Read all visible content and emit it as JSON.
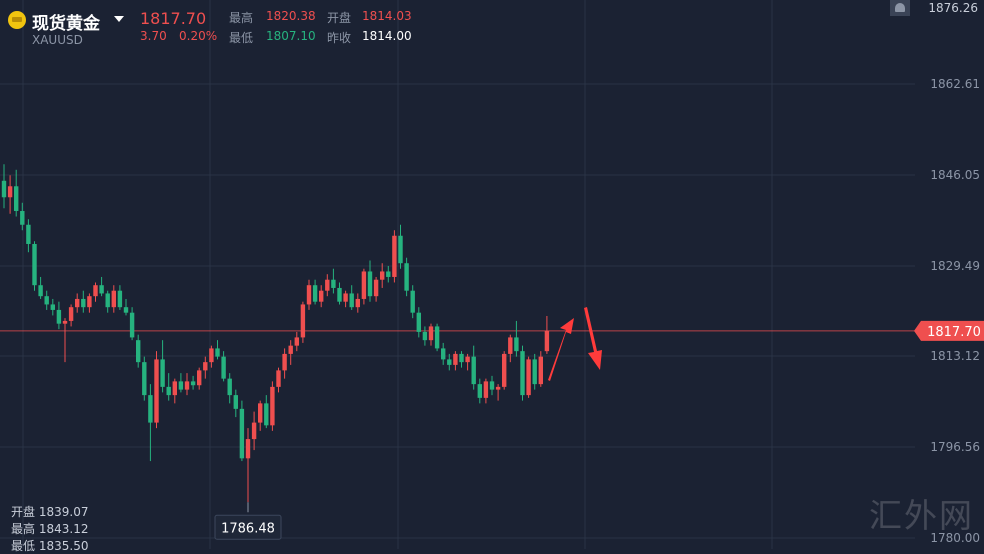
{
  "header": {
    "name": "现货黄金",
    "symbol": "XAUUSD",
    "price": "1817.70",
    "change": "3.70",
    "change_pct": "0.20%",
    "high_label": "最高",
    "high": "1820.38",
    "low_label": "最低",
    "low": "1807.10",
    "open_label": "开盘",
    "open": "1814.03",
    "prev_close_label": "昨收",
    "prev_close": "1814.00"
  },
  "ohlc_panel": {
    "open_label": "开盘",
    "open": "1839.07",
    "high_label": "最高",
    "high": "1843.12",
    "low_label": "最低",
    "low": "1835.50"
  },
  "watermark": "汇外网",
  "colors": {
    "up": "#ef4f4f",
    "down": "#26b37f",
    "bg": "#1b2233",
    "grid": "#2a3346"
  },
  "chart_data": {
    "type": "candlestick",
    "y_ticks": [
      "1862.61",
      "1846.05",
      "1829.49",
      "1813.12",
      "1796.56",
      "1780.00"
    ],
    "top_tick": "1876.26",
    "ylim": [
      1780.0,
      1876.26
    ],
    "current_price": "1817.70",
    "min_marker": "1786.48",
    "annotations": [
      "red-arrow-up",
      "red-arrow-down"
    ],
    "candles": [
      [
        1845.0,
        1848.0,
        1840.0,
        1842.0
      ],
      [
        1842.0,
        1846.0,
        1839.0,
        1844.0
      ],
      [
        1844.0,
        1847.0,
        1838.5,
        1839.5
      ],
      [
        1839.5,
        1841.0,
        1836.0,
        1837.0
      ],
      [
        1837.0,
        1838.0,
        1832.0,
        1833.5
      ],
      [
        1833.5,
        1834.0,
        1825.0,
        1826.0
      ],
      [
        1826.0,
        1827.5,
        1823.5,
        1824.0
      ],
      [
        1824.0,
        1825.0,
        1821.5,
        1822.5
      ],
      [
        1822.5,
        1823.5,
        1820.5,
        1821.5
      ],
      [
        1821.5,
        1823.0,
        1818.0,
        1819.0
      ],
      [
        1819.0,
        1820.0,
        1812.0,
        1819.5
      ],
      [
        1819.5,
        1822.5,
        1818.5,
        1822.0
      ],
      [
        1822.0,
        1824.5,
        1821.0,
        1823.5
      ],
      [
        1823.5,
        1825.0,
        1821.0,
        1822.0
      ],
      [
        1822.0,
        1824.5,
        1821.0,
        1824.0
      ],
      [
        1824.0,
        1826.5,
        1823.0,
        1826.0
      ],
      [
        1826.0,
        1827.5,
        1824.0,
        1824.5
      ],
      [
        1824.5,
        1825.0,
        1821.0,
        1822.0
      ],
      [
        1822.0,
        1826.0,
        1821.0,
        1825.0
      ],
      [
        1825.0,
        1826.0,
        1821.5,
        1822.0
      ],
      [
        1822.0,
        1823.5,
        1820.5,
        1821.0
      ],
      [
        1821.0,
        1822.0,
        1816.0,
        1816.5
      ],
      [
        1816.0,
        1817.0,
        1811.0,
        1812.0
      ],
      [
        1812.0,
        1813.0,
        1805.0,
        1806.0
      ],
      [
        1806.0,
        1808.0,
        1794.0,
        1801.0
      ],
      [
        1801.0,
        1814.0,
        1800.0,
        1812.5
      ],
      [
        1812.5,
        1816.0,
        1806.5,
        1807.5
      ],
      [
        1807.5,
        1810.0,
        1805.0,
        1806.0
      ],
      [
        1806.0,
        1809.0,
        1804.5,
        1808.5
      ],
      [
        1808.5,
        1810.0,
        1806.5,
        1807.0
      ],
      [
        1807.0,
        1810.0,
        1806.0,
        1808.5
      ],
      [
        1808.5,
        1809.5,
        1807.0,
        1807.8
      ],
      [
        1807.8,
        1811.0,
        1807.0,
        1810.5
      ],
      [
        1810.5,
        1813.0,
        1809.0,
        1812.0
      ],
      [
        1812.0,
        1815.0,
        1811.0,
        1814.5
      ],
      [
        1814.5,
        1816.0,
        1812.5,
        1813.0
      ],
      [
        1813.0,
        1814.0,
        1808.5,
        1809.0
      ],
      [
        1809.0,
        1810.0,
        1804.5,
        1806.0
      ],
      [
        1806.0,
        1807.0,
        1802.0,
        1803.5
      ],
      [
        1803.5,
        1805.0,
        1794.0,
        1794.5
      ],
      [
        1794.5,
        1800.0,
        1786.5,
        1798.0
      ],
      [
        1798.0,
        1803.0,
        1796.0,
        1801.0
      ],
      [
        1801.0,
        1805.0,
        1799.5,
        1804.5
      ],
      [
        1804.5,
        1806.0,
        1800.0,
        1800.5
      ],
      [
        1800.5,
        1808.5,
        1799.5,
        1807.5
      ],
      [
        1807.5,
        1811.0,
        1806.5,
        1810.5
      ],
      [
        1810.5,
        1814.5,
        1809.0,
        1813.5
      ],
      [
        1813.5,
        1816.0,
        1811.5,
        1815.0
      ],
      [
        1815.0,
        1817.5,
        1814.0,
        1816.5
      ],
      [
        1816.5,
        1823.0,
        1815.5,
        1822.5
      ],
      [
        1822.5,
        1827.0,
        1821.5,
        1826.0
      ],
      [
        1826.0,
        1827.0,
        1822.5,
        1823.0
      ],
      [
        1823.0,
        1826.0,
        1822.0,
        1825.0
      ],
      [
        1825.0,
        1828.0,
        1824.0,
        1827.0
      ],
      [
        1827.0,
        1829.0,
        1824.5,
        1825.5
      ],
      [
        1825.5,
        1826.5,
        1822.5,
        1823.0
      ],
      [
        1823.0,
        1825.0,
        1822.0,
        1824.5
      ],
      [
        1824.5,
        1826.0,
        1821.5,
        1822.0
      ],
      [
        1822.0,
        1824.5,
        1821.0,
        1823.5
      ],
      [
        1823.5,
        1829.0,
        1822.5,
        1828.5
      ],
      [
        1828.5,
        1830.5,
        1823.0,
        1824.0
      ],
      [
        1824.0,
        1827.5,
        1823.0,
        1827.0
      ],
      [
        1827.0,
        1830.0,
        1825.5,
        1828.5
      ],
      [
        1828.5,
        1829.5,
        1826.5,
        1827.5
      ],
      [
        1827.5,
        1836.0,
        1826.5,
        1835.0
      ],
      [
        1835.0,
        1837.0,
        1829.0,
        1830.0
      ],
      [
        1830.0,
        1831.0,
        1824.0,
        1825.0
      ],
      [
        1825.0,
        1826.0,
        1820.0,
        1821.0
      ],
      [
        1821.0,
        1822.0,
        1816.5,
        1817.5
      ],
      [
        1817.5,
        1818.5,
        1815.0,
        1816.0
      ],
      [
        1816.0,
        1819.0,
        1815.0,
        1818.5
      ],
      [
        1818.5,
        1819.0,
        1814.0,
        1814.5
      ],
      [
        1814.5,
        1815.5,
        1811.5,
        1812.5
      ],
      [
        1812.5,
        1813.5,
        1810.5,
        1811.5
      ],
      [
        1811.5,
        1814.0,
        1810.5,
        1813.5
      ],
      [
        1813.5,
        1814.0,
        1811.0,
        1812.0
      ],
      [
        1812.0,
        1813.5,
        1810.5,
        1813.0
      ],
      [
        1813.0,
        1815.0,
        1807.0,
        1808.0
      ],
      [
        1808.0,
        1809.0,
        1804.5,
        1805.5
      ],
      [
        1805.5,
        1809.0,
        1804.5,
        1808.5
      ],
      [
        1808.5,
        1809.5,
        1806.0,
        1807.0
      ],
      [
        1807.0,
        1808.0,
        1805.0,
        1807.5
      ],
      [
        1807.5,
        1814.0,
        1807.0,
        1813.5
      ],
      [
        1813.5,
        1817.0,
        1812.0,
        1816.5
      ],
      [
        1816.5,
        1819.5,
        1813.0,
        1814.0
      ],
      [
        1814.0,
        1815.0,
        1805.0,
        1806.0
      ],
      [
        1806.0,
        1813.0,
        1805.5,
        1812.5
      ],
      [
        1812.5,
        1813.5,
        1807.0,
        1808.0
      ],
      [
        1808.0,
        1814.0,
        1807.5,
        1813.0
      ],
      [
        1814.0,
        1820.4,
        1813.5,
        1817.7
      ]
    ]
  }
}
